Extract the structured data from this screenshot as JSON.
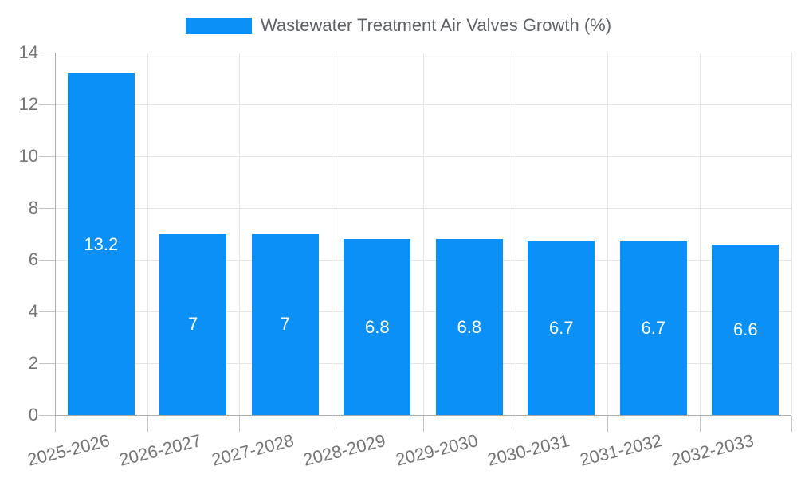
{
  "chart_data": {
    "type": "bar",
    "title": "Wastewater Treatment Air Valves Growth (%)",
    "categories": [
      "2025-2026",
      "2026-2027",
      "2027-2028",
      "2028-2029",
      "2029-2030",
      "2030-2031",
      "2031-2032",
      "2032-2033"
    ],
    "values": [
      13.2,
      7,
      7,
      6.8,
      6.8,
      6.7,
      6.7,
      6.6
    ],
    "value_labels": [
      "13.2",
      "7",
      "7",
      "6.8",
      "6.8",
      "6.7",
      "6.7",
      "6.6"
    ],
    "xlabel": "",
    "ylabel": "",
    "ylim": [
      0,
      14
    ],
    "yticks": [
      0,
      2,
      4,
      6,
      8,
      10,
      12,
      14
    ],
    "grid": "on",
    "legend_position": "top-center",
    "colors": {
      "bar": "#0a90f6",
      "bar_label": "#ffffff",
      "grid": "#e5e5e5",
      "axis": "#ababab",
      "tick": "#c4c4c4",
      "tick_label": "#757575",
      "legend_text": "#5f6368"
    }
  }
}
